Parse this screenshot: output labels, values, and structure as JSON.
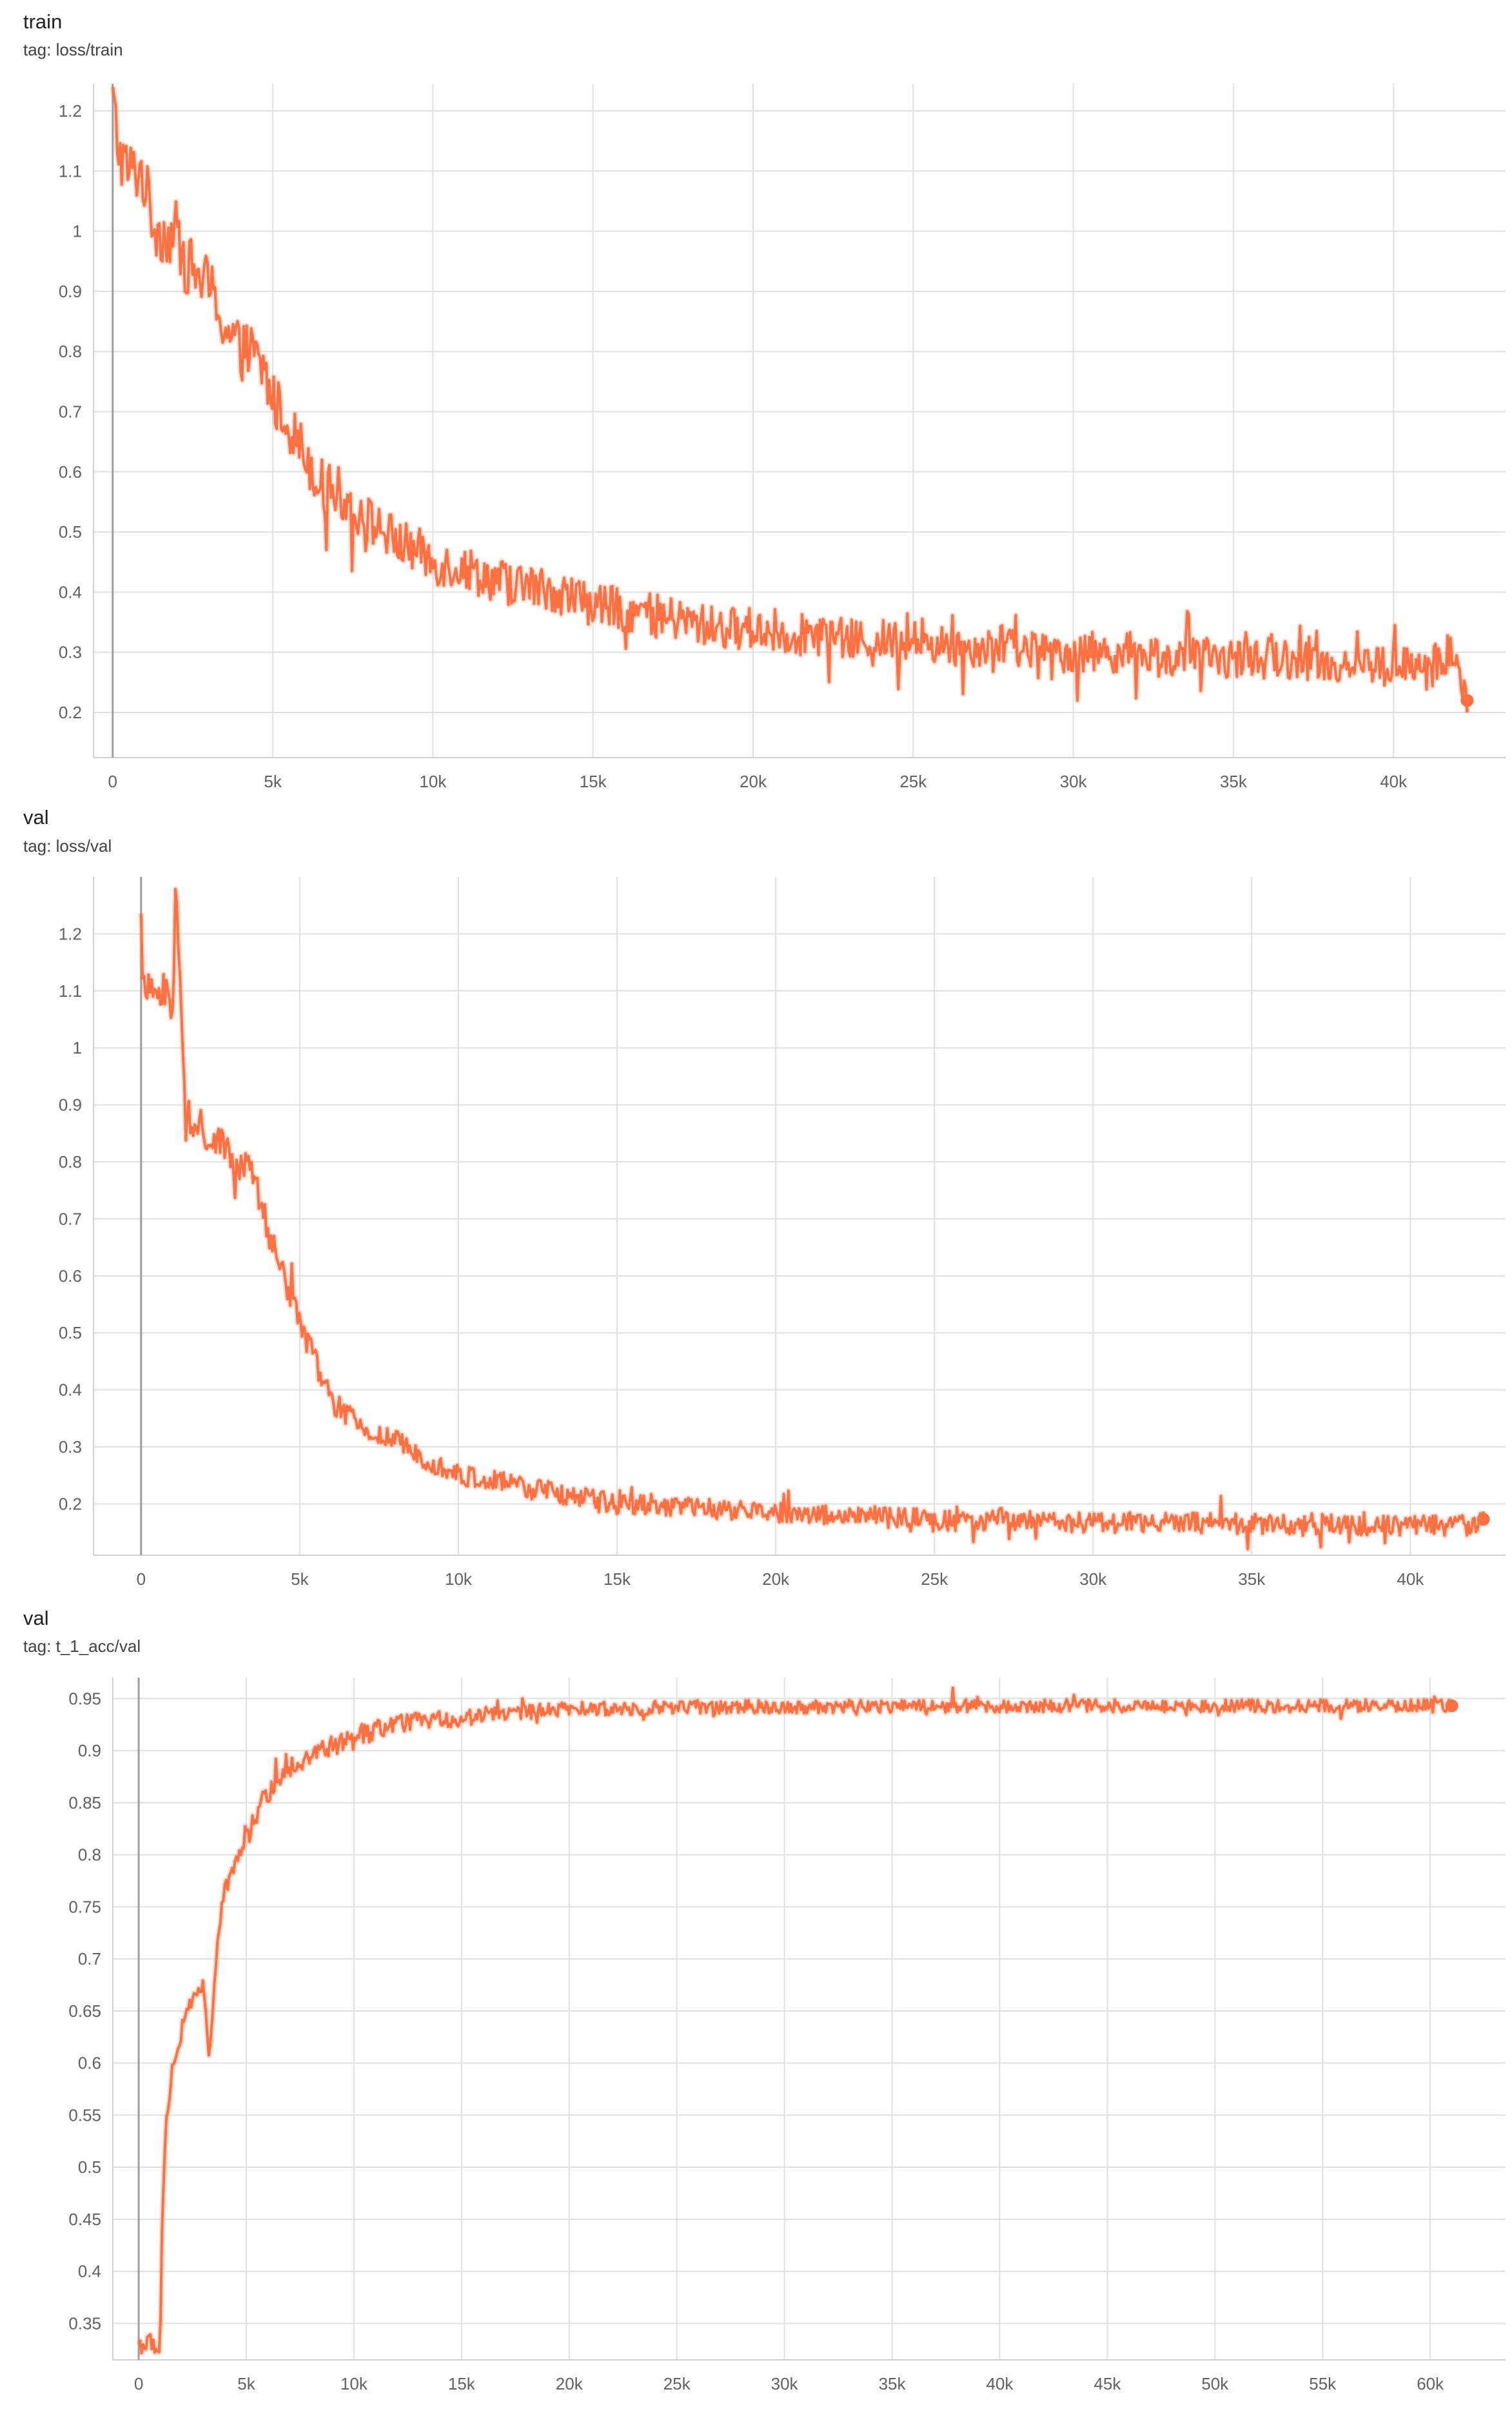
{
  "chart_data": [
    {
      "type": "line",
      "title": "train",
      "subtitle": "tag: loss/train",
      "x_ticks": [
        "0",
        "5k",
        "10k",
        "15k",
        "20k",
        "25k",
        "30k",
        "35k",
        "40k"
      ],
      "x_tick_values": [
        0,
        5000,
        10000,
        15000,
        20000,
        25000,
        30000,
        35000,
        40000
      ],
      "y_ticks": [
        "1.2",
        "1.1",
        "1",
        "0.9",
        "0.8",
        "0.7",
        "0.6",
        "0.5",
        "0.4",
        "0.3",
        "0.2"
      ],
      "y_tick_values": [
        1.2,
        1.1,
        1.0,
        0.9,
        0.8,
        0.7,
        0.6,
        0.5,
        0.4,
        0.3,
        0.2
      ],
      "xlim": [
        -600,
        43500
      ],
      "ylim": [
        0.125,
        1.245
      ],
      "grid": true,
      "legend": "none",
      "series": [
        {
          "color": "#ff7043",
          "x": [
            0,
            200,
            500,
            900,
            1300,
            1700,
            2000,
            2200,
            2600,
            3000,
            3300,
            3600,
            4000,
            4300,
            4700,
            5000,
            5500,
            6000,
            6500,
            7000,
            7500,
            8000,
            8500,
            9000,
            9500,
            10000,
            11000,
            12000,
            13000,
            14000,
            15000,
            16000,
            17000,
            18000,
            19000,
            20000,
            21000,
            22000,
            23000,
            24000,
            25000,
            26000,
            27000,
            28000,
            29000,
            30000,
            31000,
            32000,
            33000,
            34000,
            35000,
            36000,
            37000,
            38000,
            39000,
            40000,
            41000,
            41800,
            42300
          ],
          "y": [
            1.22,
            1.13,
            1.1,
            1.1,
            1.01,
            0.99,
            1.0,
            0.95,
            0.93,
            0.91,
            0.87,
            0.83,
            0.8,
            0.8,
            0.77,
            0.72,
            0.68,
            0.63,
            0.58,
            0.57,
            0.54,
            0.52,
            0.5,
            0.48,
            0.47,
            0.45,
            0.44,
            0.42,
            0.41,
            0.4,
            0.38,
            0.37,
            0.36,
            0.35,
            0.34,
            0.34,
            0.33,
            0.33,
            0.32,
            0.32,
            0.32,
            0.31,
            0.31,
            0.31,
            0.3,
            0.3,
            0.3,
            0.3,
            0.29,
            0.29,
            0.29,
            0.29,
            0.29,
            0.28,
            0.28,
            0.28,
            0.27,
            0.3,
            0.22
          ],
          "noise": 0.06
        }
      ]
    },
    {
      "type": "line",
      "title": "val",
      "subtitle": "tag: loss/val",
      "x_ticks": [
        "0",
        "5k",
        "10k",
        "15k",
        "20k",
        "25k",
        "30k",
        "35k",
        "40k"
      ],
      "x_tick_values": [
        0,
        5000,
        10000,
        15000,
        20000,
        25000,
        30000,
        35000,
        40000
      ],
      "y_ticks": [
        "1.2",
        "1.1",
        "1",
        "0.9",
        "0.8",
        "0.7",
        "0.6",
        "0.5",
        "0.4",
        "0.3",
        "0.2"
      ],
      "y_tick_values": [
        1.2,
        1.1,
        1.0,
        0.9,
        0.8,
        0.7,
        0.6,
        0.5,
        0.4,
        0.3,
        0.2
      ],
      "xlim": [
        -1500,
        43000
      ],
      "ylim": [
        0.11,
        1.3
      ],
      "grid": true,
      "legend": "none",
      "series": [
        {
          "color": "#ff7043",
          "x": [
            0,
            50,
            300,
            800,
            1000,
            1100,
            1400,
            2000,
            2500,
            3000,
            3500,
            4000,
            4500,
            5000,
            5500,
            6000,
            7000,
            8000,
            9000,
            10000,
            11000,
            12000,
            13000,
            14000,
            15000,
            16000,
            18000,
            20000,
            22000,
            24000,
            25000,
            26000,
            28000,
            30000,
            32000,
            34000,
            36000,
            38000,
            40000,
            42000,
            42300
          ],
          "y": [
            1.26,
            1.1,
            1.1,
            1.1,
            1.07,
            1.3,
            0.86,
            0.85,
            0.83,
            0.8,
            0.78,
            0.68,
            0.6,
            0.52,
            0.45,
            0.38,
            0.33,
            0.31,
            0.28,
            0.25,
            0.24,
            0.23,
            0.22,
            0.21,
            0.2,
            0.2,
            0.19,
            0.185,
            0.18,
            0.175,
            0.172,
            0.17,
            0.17,
            0.168,
            0.167,
            0.166,
            0.165,
            0.164,
            0.163,
            0.163,
            0.173
          ],
          "noise": 0.035
        }
      ]
    },
    {
      "type": "line",
      "title": "val",
      "subtitle": "tag: t_1_acc/val",
      "x_ticks": [
        "0",
        "5k",
        "10k",
        "15k",
        "20k",
        "25k",
        "30k",
        "35k",
        "40k",
        "45k",
        "50k",
        "55k",
        "60k"
      ],
      "x_tick_values": [
        0,
        5000,
        10000,
        15000,
        20000,
        25000,
        30000,
        35000,
        40000,
        45000,
        50000,
        55000,
        60000
      ],
      "y_ticks": [
        "0.95",
        "0.9",
        "0.85",
        "0.8",
        "0.75",
        "0.7",
        "0.65",
        "0.6",
        "0.55",
        "0.5",
        "0.45",
        "0.4",
        "0.35"
      ],
      "y_tick_values": [
        0.95,
        0.9,
        0.85,
        0.8,
        0.75,
        0.7,
        0.65,
        0.6,
        0.55,
        0.5,
        0.45,
        0.4,
        0.35
      ],
      "xlim": [
        -1200,
        63500
      ],
      "ylim": [
        0.315,
        0.97
      ],
      "grid": true,
      "legend": "none",
      "series": [
        {
          "color": "#ff7043",
          "x": [
            0,
            600,
            1000,
            1100,
            1300,
            1600,
            2000,
            2500,
            3000,
            3300,
            3600,
            3900,
            4200,
            4600,
            5000,
            5500,
            6000,
            6500,
            7000,
            8000,
            9000,
            10000,
            11000,
            12000,
            13000,
            14000,
            15000,
            16000,
            18000,
            20000,
            22000,
            25000,
            30000,
            35000,
            40000,
            45000,
            50000,
            55000,
            60000,
            61000
          ],
          "y": [
            0.33,
            0.33,
            0.33,
            0.46,
            0.55,
            0.6,
            0.63,
            0.66,
            0.68,
            0.6,
            0.7,
            0.76,
            0.78,
            0.8,
            0.82,
            0.84,
            0.86,
            0.87,
            0.885,
            0.895,
            0.905,
            0.91,
            0.92,
            0.925,
            0.93,
            0.93,
            0.93,
            0.935,
            0.937,
            0.94,
            0.94,
            0.942,
            0.942,
            0.943,
            0.943,
            0.943,
            0.943,
            0.943,
            0.943,
            0.943
          ],
          "noise": 0.012
        }
      ]
    }
  ]
}
